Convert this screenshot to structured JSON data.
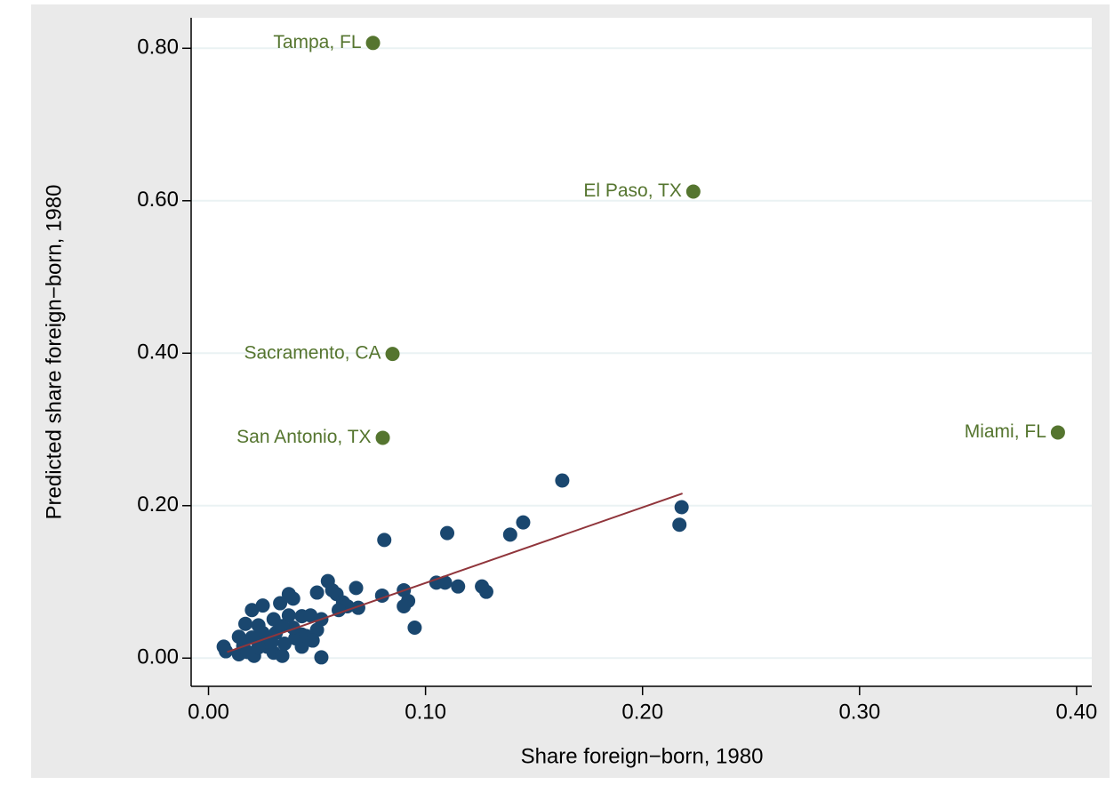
{
  "chart_data": {
    "type": "scatter",
    "xlabel": "Share foreign−born, 1980",
    "ylabel": "Predicted share foreign−born, 1980",
    "xlim": [
      -0.008,
      0.407
    ],
    "ylim": [
      -0.037,
      0.84
    ],
    "xticks": [
      {
        "value": 0,
        "label": "0.00"
      },
      {
        "value": 0.1,
        "label": "0.10"
      },
      {
        "value": 0.2,
        "label": "0.20"
      },
      {
        "value": 0.3,
        "label": "0.30"
      },
      {
        "value": 0.4,
        "label": "0.40"
      }
    ],
    "yticks": [
      {
        "value": 0,
        "label": "0.00"
      },
      {
        "value": 0.2,
        "label": "0.20"
      },
      {
        "value": 0.4,
        "label": "0.40"
      },
      {
        "value": 0.6,
        "label": "0.60"
      },
      {
        "value": 0.8,
        "label": "0.80"
      }
    ],
    "grid": true,
    "series": [
      {
        "color": "#1a476f",
        "x": [
          0.163,
          0.145,
          0.139,
          0.218,
          0.217,
          0.11,
          0.081,
          0.105,
          0.109,
          0.115,
          0.126,
          0.128,
          0.09,
          0.092,
          0.09,
          0.095,
          0.08,
          0.068,
          0.069,
          0.055,
          0.05,
          0.057,
          0.059,
          0.062,
          0.064,
          0.06,
          0.052,
          0.037,
          0.039,
          0.033,
          0.025,
          0.02,
          0.017,
          0.023,
          0.043,
          0.047,
          0.037,
          0.03,
          0.05,
          0.052,
          0.043,
          0.043,
          0.007,
          0.008,
          0.014,
          0.016,
          0.018,
          0.021,
          0.023,
          0.027,
          0.03,
          0.034,
          0.035,
          0.04,
          0.025,
          0.02,
          0.031,
          0.045,
          0.014,
          0.029,
          0.039,
          0.034,
          0.023,
          0.048
        ],
        "values": [
          0.233,
          0.178,
          0.162,
          0.198,
          0.175,
          0.164,
          0.155,
          0.099,
          0.099,
          0.094,
          0.094,
          0.087,
          0.089,
          0.075,
          0.068,
          0.04,
          0.082,
          0.092,
          0.066,
          0.101,
          0.086,
          0.089,
          0.084,
          0.073,
          0.068,
          0.063,
          0.001,
          0.084,
          0.078,
          0.072,
          0.069,
          0.063,
          0.045,
          0.043,
          0.055,
          0.056,
          0.056,
          0.051,
          0.037,
          0.051,
          0.031,
          0.015,
          0.015,
          0.009,
          0.005,
          0.016,
          0.008,
          0.003,
          0.024,
          0.015,
          0.007,
          0.003,
          0.019,
          0.026,
          0.033,
          0.027,
          0.033,
          0.029,
          0.028,
          0.021,
          0.04,
          0.042,
          0.014,
          0.023
        ]
      }
    ],
    "labeled_points": {
      "color": "#55752f",
      "labels": [
        "Tampa, FL",
        "El Paso, TX",
        "Sacramento, CA",
        "San Antonio, TX",
        "Miami, FL"
      ],
      "x": [
        0.0758,
        0.2234,
        0.0848,
        0.0803,
        0.3914
      ],
      "values": [
        0.807,
        0.612,
        0.399,
        0.289,
        0.296
      ]
    },
    "fit_line": {
      "color": "#90353b",
      "x": [
        0.0086,
        0.2184
      ],
      "values": [
        0.008,
        0.216
      ]
    }
  }
}
